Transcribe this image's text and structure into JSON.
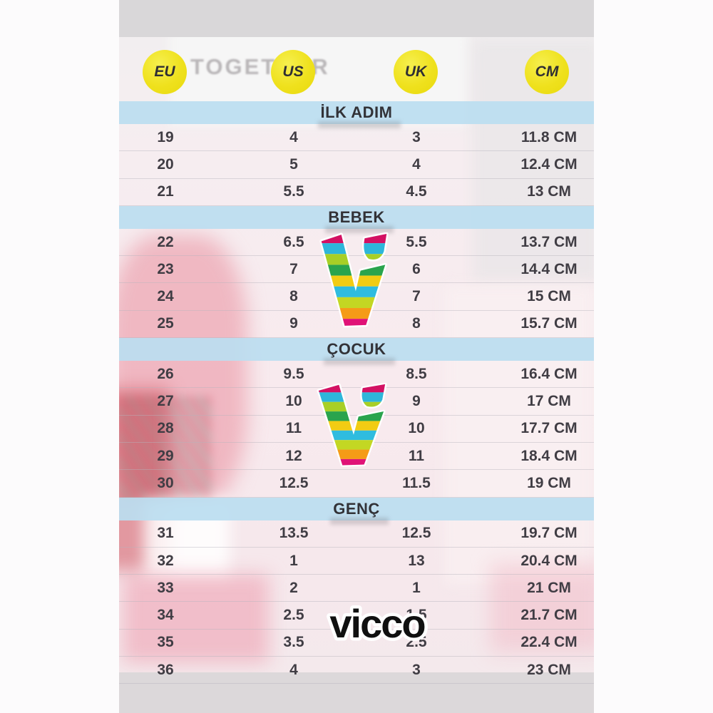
{
  "chart_data": {
    "type": "table",
    "columns": [
      "EU",
      "US",
      "UK",
      "CM"
    ],
    "sections": [
      {
        "title": "İLK ADIM",
        "rows": [
          [
            "19",
            "4",
            "3",
            "11.8 CM"
          ],
          [
            "20",
            "5",
            "4",
            "12.4 CM"
          ],
          [
            "21",
            "5.5",
            "4.5",
            "13 CM"
          ]
        ]
      },
      {
        "title": "BEBEK",
        "rows": [
          [
            "22",
            "6.5",
            "5.5",
            "13.7 CM"
          ],
          [
            "23",
            "7",
            "6",
            "14.4 CM"
          ],
          [
            "24",
            "8",
            "7",
            "15 CM"
          ],
          [
            "25",
            "9",
            "8",
            "15.7 CM"
          ]
        ]
      },
      {
        "title": "ÇOCUK",
        "rows": [
          [
            "26",
            "9.5",
            "8.5",
            "16.4 CM"
          ],
          [
            "27",
            "10",
            "9",
            "17 CM"
          ],
          [
            "28",
            "11",
            "10",
            "17.7 CM"
          ],
          [
            "29",
            "12",
            "11",
            "18.4 CM"
          ],
          [
            "30",
            "12.5",
            "11.5",
            "19 CM"
          ]
        ]
      },
      {
        "title": "GENÇ",
        "rows": [
          [
            "31",
            "13.5",
            "12.5",
            "19.7 CM"
          ],
          [
            "32",
            "1",
            "13",
            "20.4 CM"
          ],
          [
            "33",
            "2",
            "1",
            "21 CM"
          ],
          [
            "34",
            "2.5",
            "1.5",
            "21.7 CM"
          ],
          [
            "35",
            "3.5",
            "2.5",
            "22.4 CM"
          ],
          [
            "36",
            "4",
            "3",
            "23 CM"
          ]
        ]
      }
    ]
  },
  "brand": {
    "wordmark": "vicco",
    "logo_stripe_colors": [
      "#d31163",
      "#2eb6da",
      "#a8cf26",
      "#2aa44d",
      "#f2cc13",
      "#2fbcdf",
      "#c3d723",
      "#f59b17",
      "#e01277"
    ]
  },
  "background": {
    "shirt_text": "TOGETHER"
  },
  "colors": {
    "header_circle_yellow": "#efe11d",
    "section_banner_blue": "#bbdef0",
    "table_text": "#403d44",
    "wordmark_black": "#101010",
    "photo_band_gray": "#d9d7d9"
  }
}
